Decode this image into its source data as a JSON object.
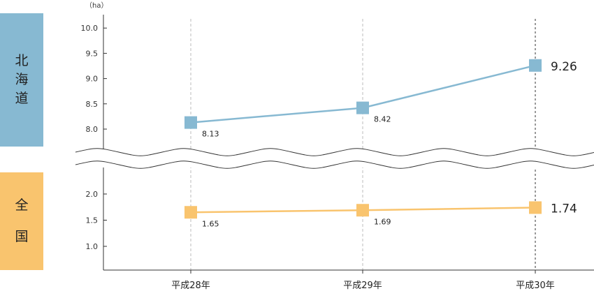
{
  "panels": {
    "hokkaido_label_chars": [
      "北",
      "海",
      "道"
    ],
    "zenkoku_label_chars": [
      "全",
      "国"
    ],
    "hokkaido_color": "#87b9d2",
    "zenkoku_color": "#f9c46e"
  },
  "chart_data": {
    "type": "line",
    "unit": "（ha）",
    "categories": [
      "平成28年",
      "平成29年",
      "平成30年"
    ],
    "upper_axis": {
      "ylim": [
        7.75,
        10.0
      ],
      "ticks": [
        "10.0",
        "9.5",
        "9.0",
        "8.5",
        "8.0"
      ],
      "tick_values": [
        10.0,
        9.5,
        9.0,
        8.5,
        8.0
      ]
    },
    "lower_axis": {
      "ylim": [
        0.6,
        2.3
      ],
      "ticks": [
        "2.0",
        "1.5",
        "1.0"
      ],
      "tick_values": [
        2.0,
        1.5,
        1.0
      ]
    },
    "axis_break": true,
    "series": [
      {
        "name": "北海道",
        "axis": "upper",
        "values": [
          8.13,
          8.42,
          9.26
        ],
        "labels": [
          "8.13",
          "8.42",
          "9.26"
        ],
        "color": "#87b9d2"
      },
      {
        "name": "全国",
        "axis": "lower",
        "values": [
          1.65,
          1.69,
          1.74
        ],
        "labels": [
          "1.65",
          "1.69",
          "1.74"
        ],
        "color": "#f9c46e"
      }
    ]
  }
}
